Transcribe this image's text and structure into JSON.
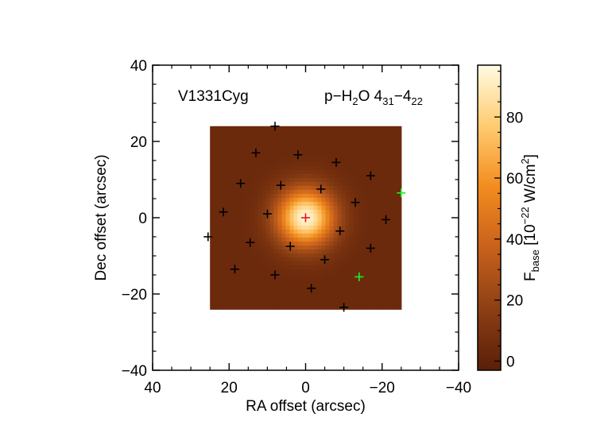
{
  "chart_data": {
    "type": "heatmap",
    "object_label": "V1331Cyg",
    "line_label": {
      "base": "p−H",
      "sub1": "2",
      "mid": "O 4",
      "sub2": "31",
      "dash": "−4",
      "sub3": "22"
    },
    "xlabel": "RA offset (arcsec)",
    "ylabel": "Dec offset (arcsec)",
    "xlim": [
      40,
      -40
    ],
    "ylim": [
      -40,
      40
    ],
    "x_ticks": [
      "40",
      "20",
      "0",
      "−20",
      "−40"
    ],
    "x_tick_values": [
      40,
      20,
      0,
      -20,
      -40
    ],
    "y_ticks": [
      "40",
      "20",
      "0",
      "−20",
      "−40"
    ],
    "y_tick_values": [
      40,
      20,
      0,
      -20,
      -40
    ],
    "colorbar": {
      "label_main": "F",
      "label_sub": "base",
      "label_unit_pre": " [10",
      "label_sup": "−22",
      "label_unit_mid": " W/cm",
      "label_sup2": "2",
      "label_unit_post": "]",
      "range": [
        -3,
        97
      ],
      "ticks": [
        "0",
        "20",
        "40",
        "60",
        "80"
      ],
      "tick_values": [
        0,
        20,
        40,
        60,
        80
      ]
    },
    "map_extent": {
      "x": [
        25,
        -25
      ],
      "y": [
        -24,
        24
      ]
    },
    "peak": {
      "x": 0,
      "y": 0,
      "value": 95,
      "sigma_arcsec": 5.2,
      "background": 4
    },
    "spaxels_black": [
      {
        "x": 8,
        "y": 24
      },
      {
        "x": 13,
        "y": 17
      },
      {
        "x": 2,
        "y": 16.5
      },
      {
        "x": -8,
        "y": 14.5
      },
      {
        "x": -17,
        "y": 11
      },
      {
        "x": 17,
        "y": 9
      },
      {
        "x": 6.5,
        "y": 8.5
      },
      {
        "x": -4,
        "y": 7.5
      },
      {
        "x": 21.5,
        "y": 1.5
      },
      {
        "x": 10,
        "y": 1
      },
      {
        "x": -13,
        "y": 4
      },
      {
        "x": -21,
        "y": -0.5
      },
      {
        "x": 25.5,
        "y": -5
      },
      {
        "x": 14.5,
        "y": -6.5
      },
      {
        "x": 4,
        "y": -7.5
      },
      {
        "x": -9,
        "y": -3.5
      },
      {
        "x": -5,
        "y": -11
      },
      {
        "x": -17,
        "y": -8
      },
      {
        "x": 18.5,
        "y": -13.5
      },
      {
        "x": 8,
        "y": -15
      },
      {
        "x": -1.5,
        "y": -18.5
      },
      {
        "x": -10,
        "y": -23.5
      }
    ],
    "spaxels_green": [
      {
        "x": -25,
        "y": 6.5
      },
      {
        "x": -14,
        "y": -15.5
      }
    ],
    "spaxel_center": {
      "x": 0,
      "y": 0
    },
    "marker_colors": {
      "black": "#000000",
      "green": "#22ee22",
      "red": "#ee1111"
    }
  }
}
